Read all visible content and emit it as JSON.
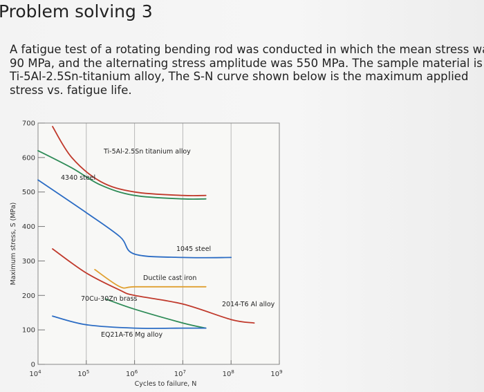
{
  "title": "Problem solving 3",
  "problem_lines": [
    "A fatigue test of a rotating bending rod was conducted in which the mean stress was",
    "90 MPa, and the alternating stress amplitude was 550 MPa. The sample material is",
    "Ti-5Al-2.5Sn-titanium alloy, The S-N curve shown below is the maximum applied",
    "stress vs. fatigue life."
  ],
  "chart_data": {
    "type": "line",
    "xlabel": "Cycles to failure, N",
    "ylabel": "Maximum stress, S (MPa)",
    "xscale": "log",
    "xlim": [
      10000,
      1000000000
    ],
    "ylim": [
      0,
      700
    ],
    "grid": true,
    "y_ticks": [
      "0",
      "100",
      "200",
      "300",
      "400",
      "500",
      "600",
      "700"
    ],
    "x_ticks": [
      {
        "base": "10",
        "exp": "4"
      },
      {
        "base": "10",
        "exp": "5"
      },
      {
        "base": "10",
        "exp": "6"
      },
      {
        "base": "10",
        "exp": "7"
      },
      {
        "base": "10",
        "exp": "8"
      },
      {
        "base": "10",
        "exp": "9"
      }
    ],
    "series": [
      {
        "name": "Ti-5Al-2.5Sn titanium alloy",
        "color": "#c0392b",
        "points": [
          [
            20000,
            690
          ],
          [
            50000,
            600
          ],
          [
            200000,
            530
          ],
          [
            1000000,
            500
          ],
          [
            10000000,
            490
          ],
          [
            30000000,
            490
          ]
        ]
      },
      {
        "name": "4340 steel",
        "color": "#2e8b57",
        "points": [
          [
            10000,
            620
          ],
          [
            50000,
            570
          ],
          [
            200000,
            520
          ],
          [
            1000000,
            490
          ],
          [
            10000000,
            480
          ],
          [
            30000000,
            480
          ]
        ]
      },
      {
        "name": "1045 steel",
        "color": "#2b6cc4",
        "points": [
          [
            10000,
            535
          ],
          [
            100000,
            440
          ],
          [
            500000,
            370
          ],
          [
            1000000,
            320
          ],
          [
            10000000,
            310
          ],
          [
            100000000,
            310
          ]
        ]
      },
      {
        "name": "Ductile cast iron",
        "color": "#e0a030",
        "points": [
          [
            150000,
            275
          ],
          [
            500000,
            225
          ],
          [
            1000000,
            225
          ],
          [
            10000000,
            225
          ],
          [
            30000000,
            225
          ]
        ]
      },
      {
        "name": "70Cu-30Zn brass",
        "color": "#c0392b",
        "points": [
          [
            20000,
            335
          ],
          [
            100000,
            265
          ],
          [
            500000,
            215
          ],
          [
            1000000,
            200
          ],
          [
            10000000,
            175
          ],
          [
            100000000,
            130
          ],
          [
            300000000,
            120
          ]
        ]
      },
      {
        "name": "2014-T6 Al alloy",
        "color": "#2e8b57",
        "points": [
          [
            250000,
            190
          ],
          [
            1000000,
            160
          ],
          [
            10000000,
            120
          ],
          [
            30000000,
            105
          ]
        ]
      },
      {
        "name": "EQ21A-T6 Mg alloy",
        "color": "#2b6cc4",
        "points": [
          [
            20000,
            140
          ],
          [
            100000,
            115
          ],
          [
            1000000,
            105
          ],
          [
            10000000,
            105
          ],
          [
            30000000,
            105
          ]
        ]
      }
    ],
    "labels": [
      {
        "text": "Ti-5Al-2.5Sn titanium alloy",
        "series": 0
      },
      {
        "text": "4340 steel",
        "series": 1
      },
      {
        "text": "1045 steel",
        "series": 2
      },
      {
        "text": "Ductile cast iron",
        "series": 3
      },
      {
        "text": "70Cu-30Zn brass",
        "series": 4
      },
      {
        "text": "2014-T6 Al alloy",
        "series": 5
      },
      {
        "text": "EQ21A-T6 Mg alloy",
        "series": 6
      }
    ]
  }
}
